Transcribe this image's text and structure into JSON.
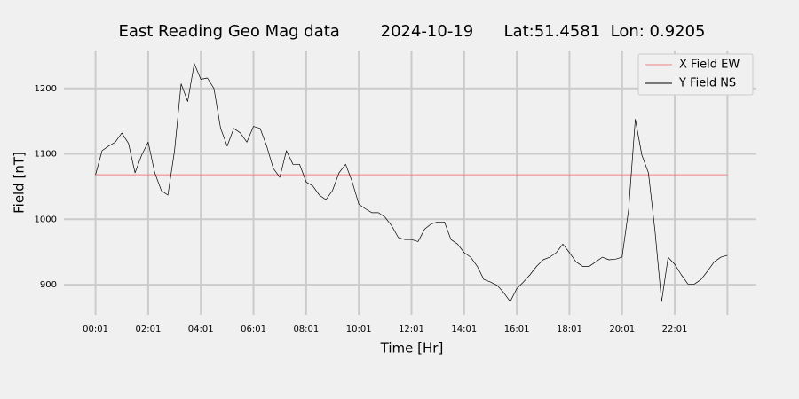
{
  "chart_data": {
    "type": "line",
    "title": "East Reading Geo Mag data        2024-10-19      Lat:51.4581  Lon: 0.9205",
    "xlabel": "Time  [Hr]",
    "ylabel": "Field  [nT]",
    "x": [
      0,
      0.25,
      0.5,
      0.75,
      1,
      1.25,
      1.5,
      1.75,
      2,
      2.25,
      2.5,
      2.75,
      3,
      3.25,
      3.5,
      3.75,
      4,
      4.25,
      4.5,
      4.75,
      5,
      5.25,
      5.5,
      5.75,
      6,
      6.25,
      6.5,
      6.75,
      7,
      7.25,
      7.5,
      7.75,
      8,
      8.25,
      8.5,
      8.75,
      9,
      9.25,
      9.5,
      9.75,
      10,
      10.25,
      10.5,
      10.75,
      11,
      11.25,
      11.5,
      11.75,
      12,
      12.25,
      12.5,
      12.75,
      13,
      13.25,
      13.5,
      13.75,
      14,
      14.25,
      14.5,
      14.75,
      15,
      15.25,
      15.5,
      15.75,
      16,
      16.25,
      16.5,
      16.75,
      17,
      17.25,
      17.5,
      17.75,
      18,
      18.25,
      18.5,
      18.75,
      19,
      19.25,
      19.5,
      19.75,
      20,
      20.25,
      20.5,
      20.75,
      21,
      21.25,
      21.5,
      21.75,
      22,
      22.25,
      22.5,
      22.75,
      23,
      23.25,
      23.5,
      23.75,
      24
    ],
    "series": [
      {
        "name": "X Field EW",
        "color": "#f08080",
        "values": [
          1068,
          1068,
          1068,
          1068,
          1068,
          1068,
          1068,
          1068,
          1068,
          1068,
          1068,
          1068,
          1068,
          1068,
          1068,
          1068,
          1068,
          1068,
          1068,
          1068,
          1068,
          1068,
          1068,
          1068,
          1068,
          1068,
          1068,
          1068,
          1068,
          1068,
          1068,
          1068,
          1068,
          1068,
          1068,
          1068,
          1068,
          1068,
          1068,
          1068,
          1068,
          1068,
          1068,
          1068,
          1068,
          1068,
          1068,
          1068,
          1068,
          1068,
          1068,
          1068,
          1068,
          1068,
          1068,
          1068,
          1068,
          1068,
          1068,
          1068,
          1068,
          1068,
          1068,
          1068,
          1068,
          1068,
          1068,
          1068,
          1068,
          1068,
          1068,
          1068,
          1068,
          1068,
          1068,
          1068,
          1068,
          1068,
          1068,
          1068,
          1068,
          1068,
          1068,
          1068,
          1068,
          1068,
          1068,
          1068,
          1068,
          1068,
          1068,
          1068,
          1068,
          1068,
          1068,
          1068,
          1068
        ]
      },
      {
        "name": "Y Field NS",
        "color": "#000000",
        "values": [
          1068,
          1105,
          1112,
          1118,
          1132,
          1116,
          1071,
          1098,
          1118,
          1071,
          1044,
          1037,
          1105,
          1207,
          1180,
          1238,
          1214,
          1216,
          1200,
          1139,
          1112,
          1139,
          1132,
          1118,
          1142,
          1139,
          1112,
          1078,
          1064,
          1105,
          1084,
          1084,
          1057,
          1051,
          1037,
          1030,
          1044,
          1071,
          1084,
          1057,
          1023,
          1016,
          1010,
          1010,
          1003,
          990,
          972,
          969,
          969,
          966,
          985,
          993,
          996,
          996,
          969,
          962,
          949,
          942,
          928,
          908,
          904,
          899,
          888,
          874,
          894,
          904,
          915,
          928,
          938,
          942,
          949,
          962,
          949,
          935,
          928,
          928,
          935,
          942,
          938,
          939,
          942,
          1016,
          1153,
          1098,
          1071,
          982,
          874,
          942,
          931,
          915,
          901,
          901,
          908,
          921,
          935,
          942,
          945
        ]
      }
    ],
    "xlim": [
      -1.2,
      25.1
    ],
    "xticks": [
      {
        "value": 0,
        "label": "00:01"
      },
      {
        "value": 2,
        "label": "02:01"
      },
      {
        "value": 4,
        "label": "04:01"
      },
      {
        "value": 6,
        "label": "06:01"
      },
      {
        "value": 8,
        "label": "08:01"
      },
      {
        "value": 10,
        "label": "10:01"
      },
      {
        "value": 12,
        "label": "12:01"
      },
      {
        "value": 14,
        "label": "14:01"
      },
      {
        "value": 16,
        "label": "16:01"
      },
      {
        "value": 18,
        "label": "18:01"
      },
      {
        "value": 20,
        "label": "20:01"
      },
      {
        "value": 22,
        "label": "22:01"
      },
      {
        "value": 24,
        "label": null
      }
    ],
    "ylim": [
      854,
      1258
    ],
    "yticks": [
      900,
      1000,
      1100,
      1200
    ],
    "grid": true,
    "legend": "upper right"
  }
}
